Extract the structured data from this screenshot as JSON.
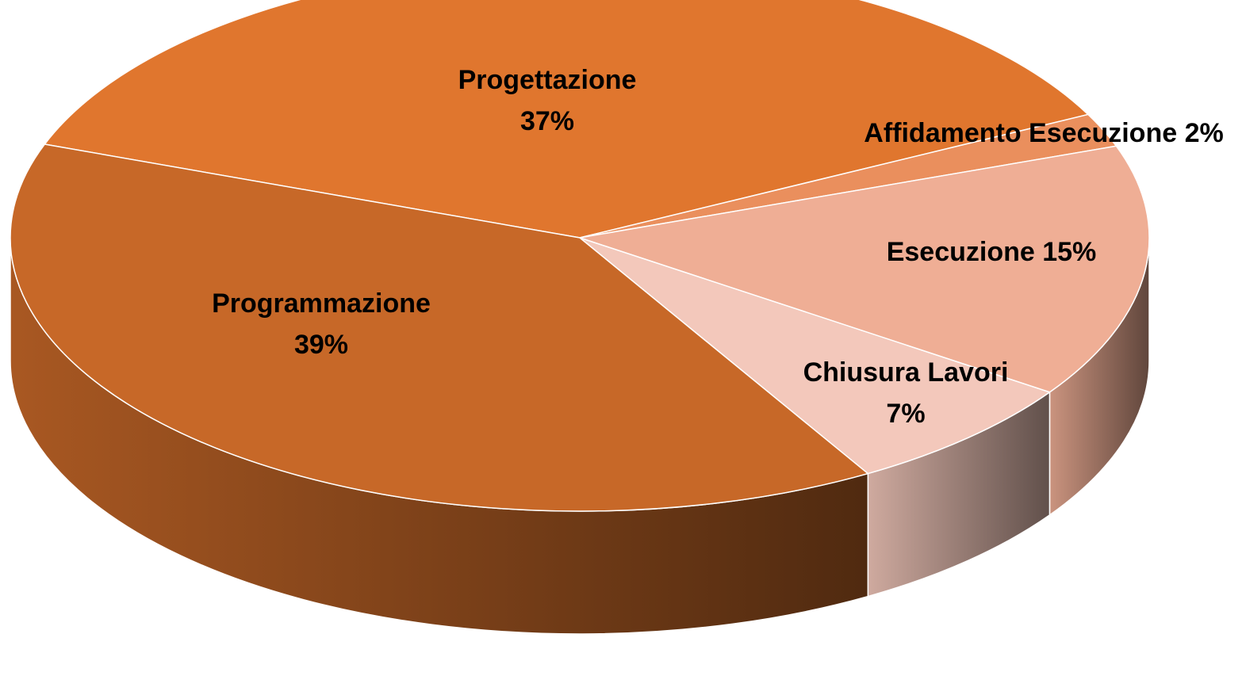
{
  "chart_data": {
    "type": "pie3d",
    "categories": [
      "Progettazione",
      "Affidamento Esecuzione",
      "Esecuzione",
      "Chiusura Lavori",
      "Programmazione"
    ],
    "values": [
      37,
      2,
      15,
      7,
      39
    ],
    "value_labels": [
      "37%",
      "2%",
      "15%",
      "7%",
      "39%"
    ],
    "colors": [
      "#e0762e",
      "#ea8f5d",
      "#efae95",
      "#f3c8bb",
      "#c76828"
    ]
  }
}
